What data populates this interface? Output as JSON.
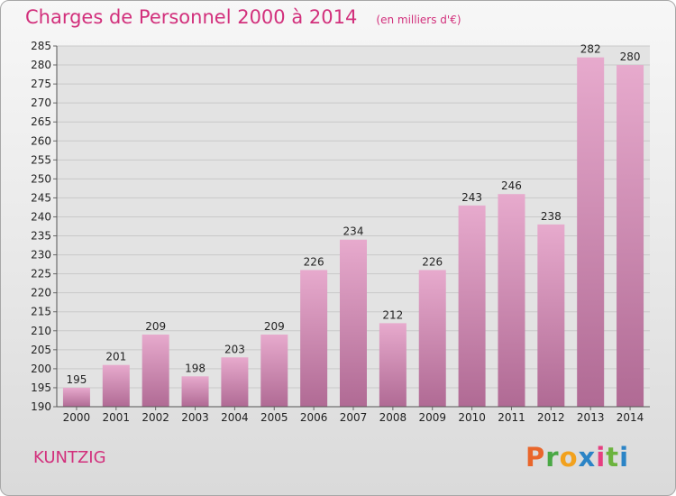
{
  "header": {
    "title": "Charges de Personnel 2000 à 2014",
    "subtitle": "(en milliers d'€)"
  },
  "footer": {
    "commune": "KUNTZIG",
    "brand": [
      "P",
      "r",
      "o",
      "x",
      "i",
      "t",
      "i"
    ]
  },
  "colors": {
    "accent": "#d2307c",
    "bar_top": "#e7aacd",
    "bar_bottom": "#b06a94"
  },
  "chart_data": {
    "type": "bar",
    "title": "Charges de Personnel 2000 à 2014",
    "subtitle": "(en milliers d'€)",
    "categories": [
      "2000",
      "2001",
      "2002",
      "2003",
      "2004",
      "2005",
      "2006",
      "2007",
      "2008",
      "2009",
      "2010",
      "2011",
      "2012",
      "2013",
      "2014"
    ],
    "values": [
      195,
      201,
      209,
      198,
      203,
      209,
      226,
      234,
      212,
      226,
      243,
      246,
      238,
      282,
      280
    ],
    "ylim": [
      190,
      285
    ],
    "yticks": [
      190,
      195,
      200,
      205,
      210,
      215,
      220,
      225,
      230,
      235,
      240,
      245,
      250,
      255,
      260,
      265,
      270,
      275,
      280,
      285
    ],
    "grid": true,
    "data_labels": true
  }
}
